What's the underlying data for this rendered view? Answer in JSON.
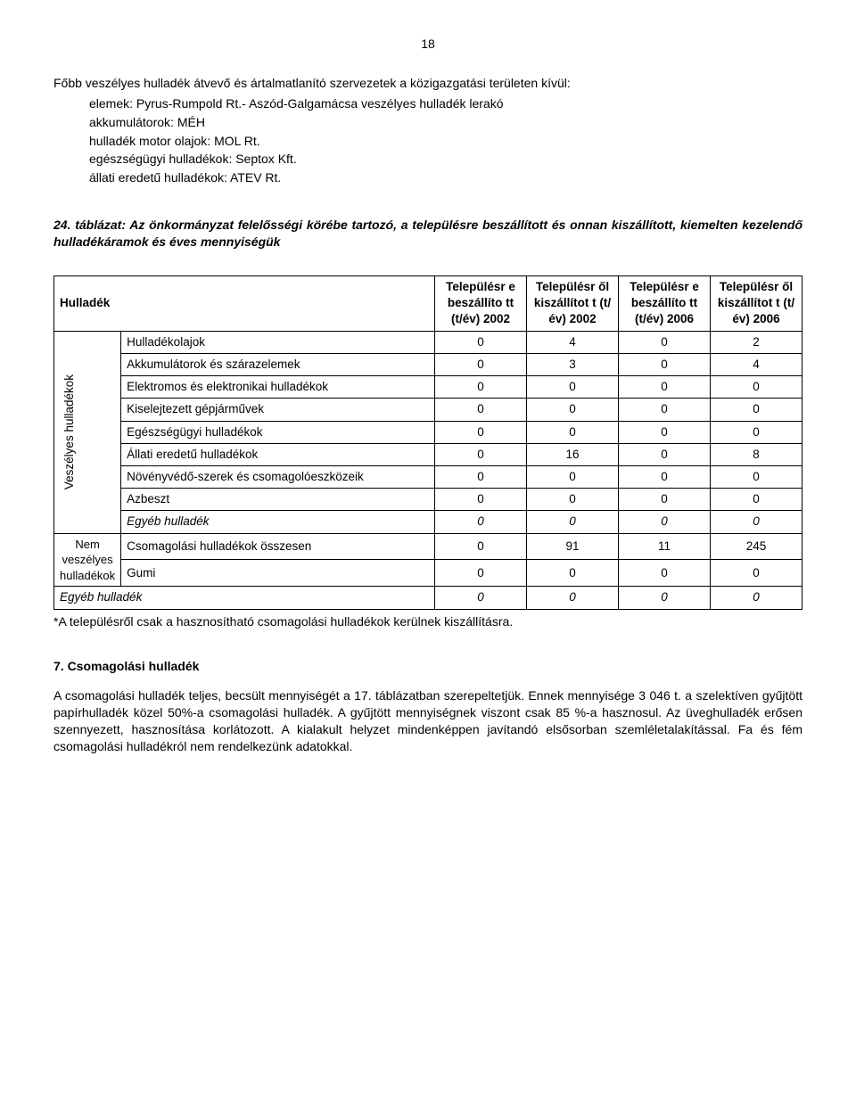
{
  "page_number": "18",
  "intro_text": "Főbb veszélyes hulladék átvevő és ártalmatlanító szervezetek a közigazgatási területen kívül:",
  "list_items": [
    "elemek: Pyrus-Rumpold Rt.- Aszód-Galgamácsa veszélyes hulladék lerakó",
    "akkumulátorok: MÉH",
    "hulladék motor olajok: MOL Rt.",
    "egészségügyi hulladékok: Septox Kft.",
    "állati eredetű hulladékok: ATEV Rt."
  ],
  "table_caption": "24. táblázat: Az önkormányzat felelősségi körébe tartozó, a településre beszállított és onnan kiszállított, kiemelten kezelendő hulladékáramok és éves mennyiségük",
  "table": {
    "col_headers": [
      "Hulladék",
      "Településr e beszállíto tt (t/év) 2002",
      "Településr ől kiszállítot t (t/év) 2002",
      "Településr e beszállíto tt (t/év) 2006",
      "Településr ől kiszállítot t (t/év) 2006"
    ],
    "group1_label": "Veszélyes hulladékok",
    "group2_label": "Nem veszélyes hulladékok",
    "rows_g1": [
      {
        "label": "Hulladékolajok",
        "v": [
          "0",
          "4",
          "0",
          "2"
        ],
        "italic": false
      },
      {
        "label": "Akkumulátorok és szárazelemek",
        "v": [
          "0",
          "3",
          "0",
          "4"
        ],
        "italic": false
      },
      {
        "label": "Elektromos és elektronikai hulladékok",
        "v": [
          "0",
          "0",
          "0",
          "0"
        ],
        "italic": false
      },
      {
        "label": "Kiselejtezett gépjárművek",
        "v": [
          "0",
          "0",
          "0",
          "0"
        ],
        "italic": false
      },
      {
        "label": "Egészségügyi hulladékok",
        "v": [
          "0",
          "0",
          "0",
          "0"
        ],
        "italic": false
      },
      {
        "label": "Állati eredetű hulladékok",
        "v": [
          "0",
          "16",
          "0",
          "8"
        ],
        "italic": false
      },
      {
        "label": "Növényvédő-szerek és csomagolóeszközeik",
        "v": [
          "0",
          "0",
          "0",
          "0"
        ],
        "italic": false
      },
      {
        "label": "Azbeszt",
        "v": [
          "0",
          "0",
          "0",
          "0"
        ],
        "italic": false
      },
      {
        "label": "Egyéb hulladék",
        "v": [
          "0",
          "0",
          "0",
          "0"
        ],
        "italic": true
      }
    ],
    "rows_g2": [
      {
        "label": "Csomagolási hulladékok összesen",
        "v": [
          "0",
          "91",
          "11",
          "245"
        ],
        "italic": false
      },
      {
        "label": "Gumi",
        "v": [
          "0",
          "0",
          "0",
          "0"
        ],
        "italic": false
      }
    ],
    "row_last": {
      "label": "Egyéb hulladék",
      "v": [
        "0",
        "0",
        "0",
        "0"
      ],
      "italic": true
    }
  },
  "footnote": "*A településről csak a hasznosítható csomagolási hulladékok kerülnek kiszállításra.",
  "section7_title": "7. Csomagolási hulladék",
  "section7_body": "A csomagolási hulladék teljes, becsült mennyiségét a 17. táblázatban szerepeltetjük. Ennek mennyisége 3 046 t. a szelektíven gyűjtött papírhulladék közel 50%-a csomagolási hulladék. A gyűjtött mennyiségnek viszont csak 85 %-a hasznosul. Az üveghulladék erősen szennyezett, hasznosítása korlátozott. A kialakult helyzet mindenképpen javítandó elsősorban szemléletalakítással. Fa és fém csomagolási hulladékról nem rendelkezünk adatokkal."
}
